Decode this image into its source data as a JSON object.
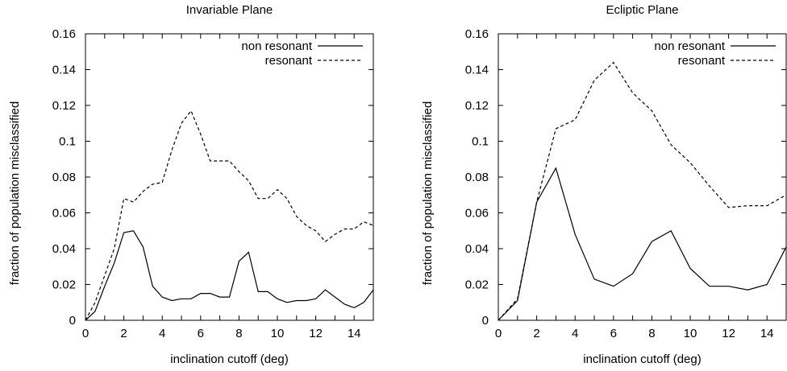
{
  "chart_data": [
    {
      "type": "line",
      "title": "Invariable Plane",
      "xlabel": "inclination cutoff (deg)",
      "ylabel": "fraction of population misclassified",
      "xlim": [
        0,
        15
      ],
      "ylim": [
        0,
        0.16
      ],
      "xticks": [
        "0",
        "2",
        "4",
        "6",
        "8",
        "10",
        "12",
        "14"
      ],
      "yticks": [
        "0",
        "0.02",
        "0.04",
        "0.06",
        "0.08",
        "0.1",
        "0.12",
        "0.14",
        "0.16"
      ],
      "legend_position": "top-right",
      "grid": false,
      "series": [
        {
          "name": "non resonant",
          "style": "solid",
          "x": [
            0,
            0.5,
            1,
            1.5,
            2,
            2.5,
            3,
            3.5,
            4,
            4.5,
            5,
            5.5,
            6,
            6.5,
            7,
            7.5,
            8,
            8.5,
            9,
            9.5,
            10,
            10.5,
            11,
            11.5,
            12,
            12.5,
            13,
            13.5,
            14,
            14.5,
            15
          ],
          "y": [
            0,
            0.005,
            0.019,
            0.032,
            0.049,
            0.05,
            0.041,
            0.019,
            0.013,
            0.011,
            0.012,
            0.012,
            0.015,
            0.015,
            0.013,
            0.013,
            0.033,
            0.038,
            0.016,
            0.016,
            0.012,
            0.01,
            0.011,
            0.011,
            0.012,
            0.017,
            0.013,
            0.009,
            0.007,
            0.01,
            0.017
          ]
        },
        {
          "name": "resonant",
          "style": "dashed",
          "x": [
            0,
            0.5,
            1,
            1.5,
            2,
            2.5,
            3,
            3.5,
            4,
            4.5,
            5,
            5.5,
            6,
            6.5,
            7,
            7.5,
            8,
            8.5,
            9,
            9.5,
            10,
            10.5,
            11,
            11.5,
            12,
            12.5,
            13,
            13.5,
            14,
            14.5,
            15
          ],
          "y": [
            0,
            0.01,
            0.025,
            0.04,
            0.068,
            0.066,
            0.072,
            0.076,
            0.077,
            0.095,
            0.11,
            0.117,
            0.104,
            0.089,
            0.089,
            0.089,
            0.083,
            0.078,
            0.068,
            0.068,
            0.073,
            0.068,
            0.058,
            0.053,
            0.05,
            0.044,
            0.048,
            0.051,
            0.051,
            0.055,
            0.053
          ]
        }
      ]
    },
    {
      "type": "line",
      "title": "Ecliptic Plane",
      "xlabel": "inclination cutoff (deg)",
      "ylabel": "fraction of population misclassified",
      "xlim": [
        0,
        15
      ],
      "ylim": [
        0,
        0.16
      ],
      "xticks": [
        "0",
        "2",
        "4",
        "6",
        "8",
        "10",
        "12",
        "14"
      ],
      "yticks": [
        "0",
        "0.02",
        "0.04",
        "0.06",
        "0.08",
        "0.1",
        "0.12",
        "0.14",
        "0.16"
      ],
      "legend_position": "top-right",
      "grid": false,
      "series": [
        {
          "name": "non resonant",
          "style": "solid",
          "x": [
            0,
            1,
            2,
            3,
            4,
            5,
            6,
            7,
            8,
            9,
            10,
            11,
            12,
            13,
            14,
            15
          ],
          "y": [
            0,
            0.011,
            0.066,
            0.085,
            0.048,
            0.023,
            0.019,
            0.026,
            0.044,
            0.05,
            0.029,
            0.019,
            0.019,
            0.017,
            0.02,
            0.041
          ]
        },
        {
          "name": "resonant",
          "style": "dashed",
          "x": [
            0,
            1,
            2,
            3,
            4,
            5,
            6,
            7,
            8,
            9,
            10,
            11,
            12,
            13,
            14,
            15
          ],
          "y": [
            0,
            0.012,
            0.066,
            0.107,
            0.112,
            0.134,
            0.144,
            0.127,
            0.117,
            0.098,
            0.088,
            0.075,
            0.063,
            0.064,
            0.064,
            0.07
          ]
        }
      ]
    }
  ]
}
